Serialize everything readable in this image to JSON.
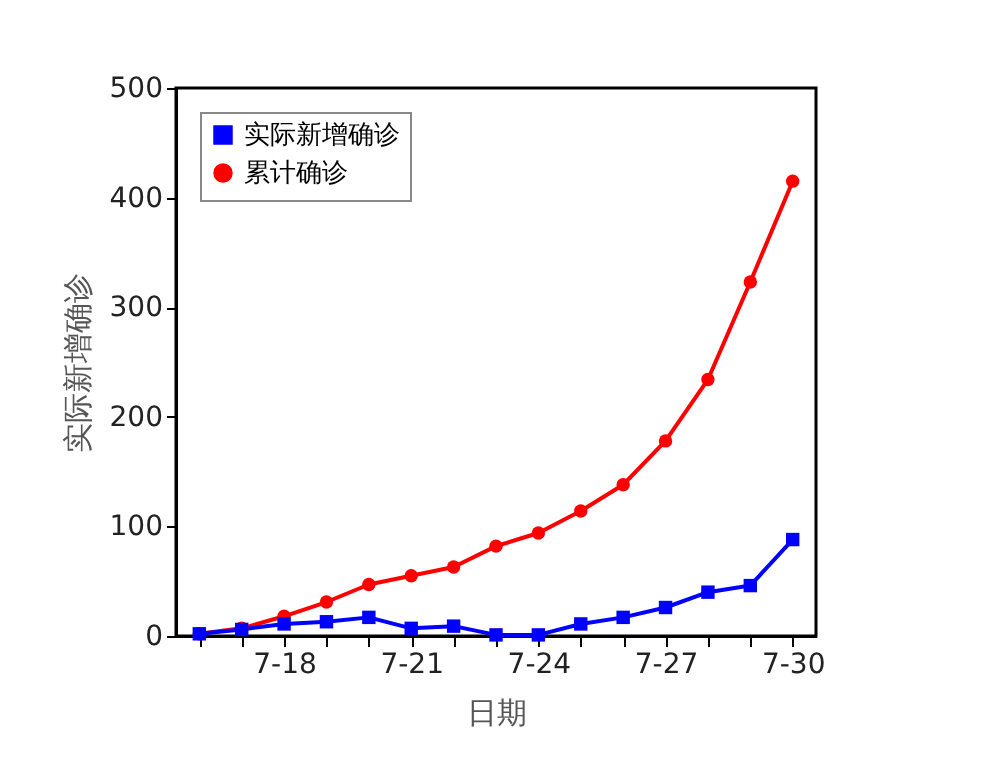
{
  "chart_data": {
    "type": "line",
    "xlabel": "日期",
    "ylabel": "实际新增确诊",
    "categories": [
      null,
      null,
      "7-18",
      null,
      null,
      "7-21",
      null,
      null,
      "7-24",
      null,
      null,
      "7-27",
      null,
      null,
      "7-30"
    ],
    "series": [
      {
        "name": "实际新增确诊",
        "color": "#0000ff",
        "marker": "square",
        "values": [
          2,
          6,
          11,
          13,
          17,
          7,
          9,
          1,
          1,
          11,
          17,
          26,
          40,
          46,
          88
        ]
      },
      {
        "name": "累计确诊",
        "color": "#ff0000",
        "marker": "circle",
        "values": [
          2,
          7,
          18,
          31,
          47,
          55,
          63,
          82,
          94,
          114,
          138,
          178,
          234,
          323,
          415
        ]
      }
    ],
    "ylim": [
      0,
      500
    ],
    "yticks": [
      0,
      100,
      200,
      300,
      400,
      500
    ],
    "grid": false,
    "legend": "top left",
    "line_style": "solid"
  }
}
